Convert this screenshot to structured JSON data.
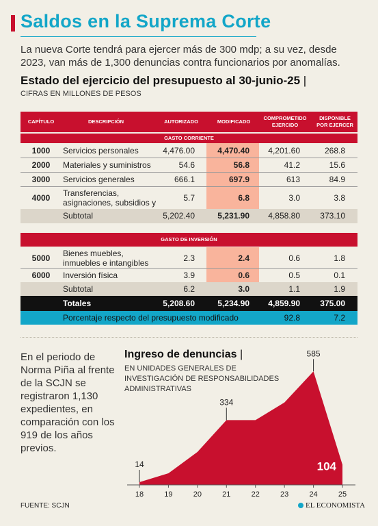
{
  "header": {
    "title": "Saldos en la Suprema Corte",
    "intro": "La nueva Corte tendrá para ejercer más de 300 mdp; a su vez, desde 2023, van más de 1,300 denuncias contra funcionarios por anomalías."
  },
  "table": {
    "title": "Estado del ejercicio del presupuesto al 30-junio-25",
    "separator": "|",
    "subtitle": "CIFRAS EN MILLONES DE PESOS",
    "headers": {
      "capitulo": "CAPÍTULO",
      "descripcion": "DESCRIPCIÓN",
      "autorizado": "AUTORIZADO",
      "modificado": "MODIFICADO",
      "comprometido": "COMPROMETIDO EJERCIDO",
      "disponible": "DISPONIBLE POR EJERCER"
    },
    "sections": [
      {
        "label": "GASTO CORRIENTE",
        "rows": [
          {
            "cap": "1000",
            "desc": "Servicios personales",
            "aut": "4,476.00",
            "mod": "4,470.40",
            "comp": "4,201.60",
            "disp": "268.8"
          },
          {
            "cap": "2000",
            "desc": "Materiales y suministros",
            "aut": "54.6",
            "mod": "56.8",
            "comp": "41.2",
            "disp": "15.6"
          },
          {
            "cap": "3000",
            "desc": "Servicios generales",
            "aut": "666.1",
            "mod": "697.9",
            "comp": "613",
            "disp": "84.9"
          },
          {
            "cap": "4000",
            "desc": "Transferencias, asignaciones, subsidios y otras ayudas",
            "aut": "5.7",
            "mod": "6.8",
            "comp": "3.0",
            "disp": "3.8"
          }
        ],
        "subtotal": {
          "label": "Subtotal",
          "aut": "5,202.40",
          "mod": "5,231.90",
          "comp": "4,858.80",
          "disp": "373.10"
        }
      },
      {
        "label": "GASTO DE INVERSIÓN",
        "rows": [
          {
            "cap": "5000",
            "desc": "Bienes muebles, inmuebles e intangibles",
            "aut": "2.3",
            "mod": "2.4",
            "comp": "0.6",
            "disp": "1.8"
          },
          {
            "cap": "6000",
            "desc": "Inversión física",
            "aut": "3.9",
            "mod": "0.6",
            "comp": "0.5",
            "disp": "0.1"
          }
        ],
        "subtotal": {
          "label": "Subtotal",
          "aut": "6.2",
          "mod": "3.0",
          "comp": "1.1",
          "disp": "1.9"
        }
      }
    ],
    "totals": {
      "label": "Totales",
      "aut": "5,208.60",
      "mod": "5,234.90",
      "comp": "4,859.90",
      "disp": "375.00"
    },
    "percent": {
      "label": "Porcentaje respecto del presupuesto modificado",
      "comp": "92.8",
      "disp": "7.2"
    }
  },
  "side_text": "En el periodo de Norma Piña al frente de la SCJN se registraron 1,130 expedientes, en comparación con los 919 de los años previos.",
  "chart_data": {
    "type": "area",
    "title": "Ingreso de denuncias",
    "separator": "|",
    "subtitle": "EN UNIDADES GENERALES DE INVESTIGACIÓN DE RESPONSABILIDADES ADMINISTRATIVAS",
    "x": [
      "18",
      "19",
      "20",
      "21",
      "22",
      "23",
      "24",
      "25"
    ],
    "values": [
      14,
      60,
      170,
      334,
      334,
      425,
      585,
      104
    ],
    "labels": {
      "0": "14",
      "3": "334",
      "6": "585",
      "7": "104"
    },
    "ylim": [
      0,
      600
    ],
    "color": "#c8102e"
  },
  "footer": {
    "source": "FUENTE: SCJN",
    "brand": "EL ECONOMISTA"
  },
  "colors": {
    "accent": "#13a6c8",
    "red": "#c8102e",
    "highlight": "#f9b49c",
    "black": "#111111"
  }
}
